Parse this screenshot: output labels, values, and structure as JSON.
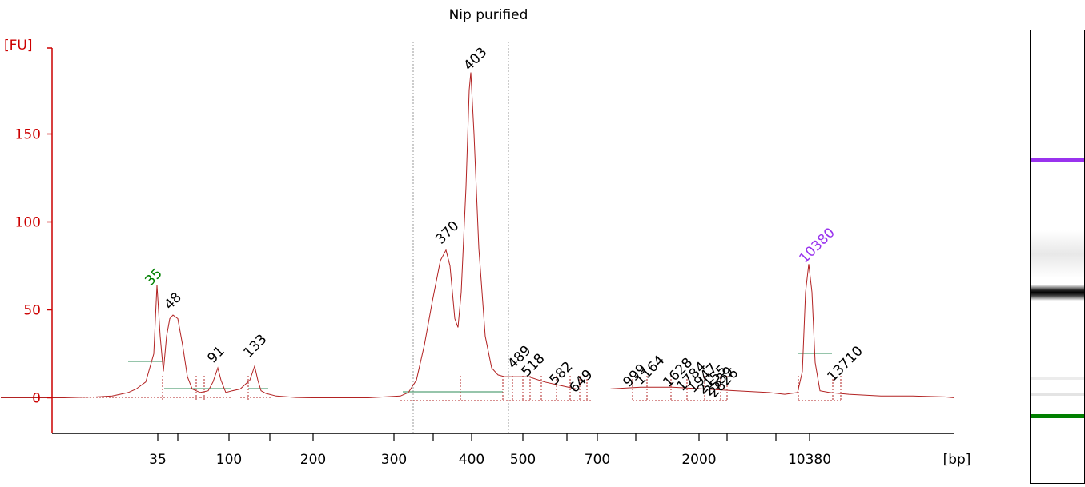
{
  "chart_data": {
    "type": "line",
    "title": "Nip purified",
    "ylabel": "[FU]",
    "xlabel": "[bp]",
    "ylim": [
      -20,
      190
    ],
    "yticks": [
      0,
      50,
      100,
      150
    ],
    "x_tick_labels": [
      "35",
      "100",
      "200",
      "300",
      "400",
      "500",
      "700",
      "2000",
      "10380"
    ],
    "series": [
      {
        "x": [
          1,
          80,
          120,
          140,
          150,
          160,
          170,
          182,
          192,
          196,
          200,
          204,
          208,
          212,
          216,
          222,
          228,
          234,
          240,
          250,
          260,
          266,
          272,
          276,
          282,
          290,
          300,
          312,
          318,
          322,
          326,
          332,
          345,
          360,
          370,
          390,
          460,
          500,
          510,
          520,
          530,
          540,
          550,
          557,
          562,
          568,
          572,
          576,
          582,
          586,
          588,
          592,
          598,
          606,
          614,
          622,
          630,
          640,
          660,
          680,
          700,
          720,
          760,
          800,
          840,
          880,
          920,
          960,
          980,
          996,
          1002,
          1006,
          1010,
          1014,
          1018,
          1024,
          1036,
          1060,
          1100,
          1140,
          1180,
          1192
        ],
        "y": [
          0,
          0,
          0.5,
          1,
          2,
          3,
          5,
          9,
          25,
          64,
          35,
          15,
          35,
          45,
          47,
          45,
          30,
          12,
          5,
          3,
          4,
          9,
          17,
          10,
          3,
          4,
          5,
          10,
          18,
          10,
          4,
          2.5,
          1,
          0.5,
          0.2,
          0,
          0,
          1,
          3,
          10,
          30,
          55,
          78,
          84,
          75,
          45,
          40,
          60,
          120,
          175,
          185,
          150,
          85,
          35,
          17,
          13,
          12,
          12,
          12,
          9,
          7,
          5,
          5,
          6,
          6,
          5,
          4,
          3,
          2,
          3,
          15,
          60,
          76,
          60,
          20,
          4,
          3,
          2,
          1,
          1,
          0.5,
          0
        ]
      }
    ],
    "peak_labels": [
      {
        "text": "35",
        "color": "#008000"
      },
      {
        "text": "48",
        "color": "#000000"
      },
      {
        "text": "91",
        "color": "#000000"
      },
      {
        "text": "133",
        "color": "#000000"
      },
      {
        "text": "370",
        "color": "#000000"
      },
      {
        "text": "403",
        "color": "#000000"
      },
      {
        "text": "489",
        "color": "#000000"
      },
      {
        "text": "518",
        "color": "#000000"
      },
      {
        "text": "582",
        "color": "#000000"
      },
      {
        "text": "649",
        "color": "#000000"
      },
      {
        "text": "999",
        "color": "#000000"
      },
      {
        "text": "1164",
        "color": "#000000"
      },
      {
        "text": "1628",
        "color": "#000000"
      },
      {
        "text": "1784",
        "color": "#000000"
      },
      {
        "text": "1947",
        "color": "#000000"
      },
      {
        "text": "2155",
        "color": "#000000"
      },
      {
        "text": "2539",
        "color": "#000000"
      },
      {
        "text": "2826",
        "color": "#000000"
      },
      {
        "text": "10380",
        "color": "#9933ee"
      },
      {
        "text": "13710",
        "color": "#000000"
      }
    ],
    "colors": {
      "trace": "#b22222",
      "axis": "#cc0000",
      "baseline": "#2e8b57",
      "marker_upper": "#9933ee",
      "marker_lower": "#008000"
    }
  }
}
